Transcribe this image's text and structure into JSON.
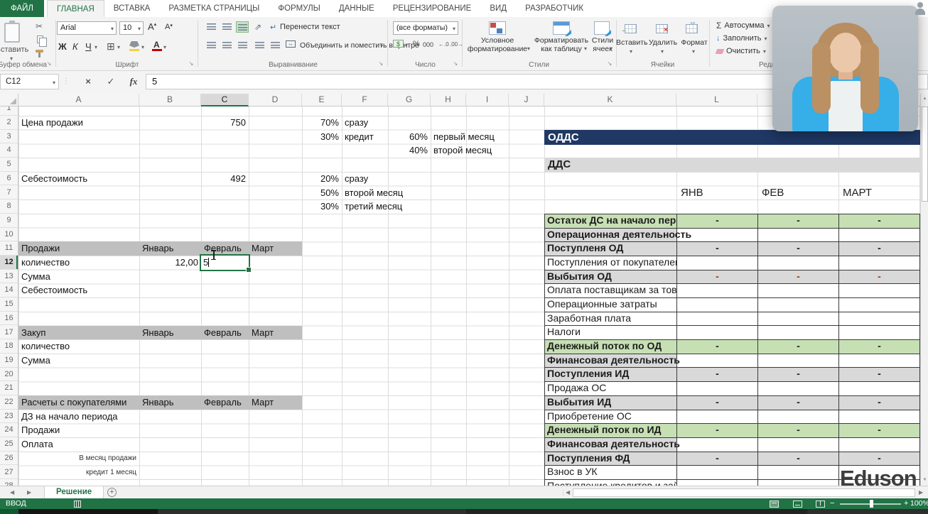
{
  "icons": {
    "scissors": "✂",
    "cancel": "×",
    "confirm": "✓",
    "fx": "fx",
    "sigma": "Σ",
    "caret": "▾",
    "border_grid": "⊞",
    "wrap_arrow": "↵",
    "orientation": "⇗",
    "merge_arrows": "↔",
    "fill_down": "↓",
    "decimal_inc": "←.0",
    "decimal_dec": ".00→",
    "currency": "$",
    "arrow_left": "◀",
    "arrow_right": "▶",
    "arrow_up": "▲",
    "arrow_down": "▼",
    "plus": "+",
    "minus": "−",
    "dots": "⋮",
    "launcher": "↘",
    "font_color_letter": "А"
  },
  "tabs": {
    "file": "ФАЙЛ",
    "active": "ГЛАВНАЯ",
    "items": [
      "ГЛАВНАЯ",
      "ВСТАВКА",
      "РАЗМЕТКА СТРАНИЦЫ",
      "ФОРМУЛЫ",
      "ДАННЫЕ",
      "РЕЦЕНЗИРОВАНИЕ",
      "ВИД",
      "РАЗРАБОТЧИК"
    ]
  },
  "ribbon": {
    "clipboard": {
      "paste": "Вставить",
      "group": "Буфер обмена"
    },
    "font": {
      "name": "Arial",
      "size": "10",
      "bold": "Ж",
      "italic": "К",
      "underline": "Ч",
      "group": "Шрифт"
    },
    "alignment": {
      "wrap": "Перенести текст",
      "merge": "Объединить и поместить в центре",
      "group": "Выравнивание"
    },
    "number": {
      "format": "(все форматы)",
      "percent": "%",
      "thousands": "000",
      "group": "Число"
    },
    "styles": {
      "conditional": "Условное форматирование",
      "as_table": "Форматировать как таблицу",
      "cell_styles": "Стили ячеек",
      "group": "Стили"
    },
    "cells": {
      "insert": "Вставить",
      "del": "Удалить",
      "format": "Формат",
      "group": "Ячейки"
    },
    "editing": {
      "autosum": "Автосумма",
      "fill": "Заполнить",
      "clear": "Очистить",
      "group": "Редактирование"
    }
  },
  "formula_bar": {
    "name_box": "C12",
    "value": "5"
  },
  "grid": {
    "columns": [
      "A",
      "B",
      "C",
      "D",
      "E",
      "F",
      "G",
      "H",
      "I",
      "J",
      "K",
      "L",
      "M"
    ],
    "selected_column": "C",
    "selected_row": 12,
    "rows_visible": 28
  },
  "band_rows": [
    11,
    17,
    22
  ],
  "sheet_cells": [
    {
      "r": 2,
      "c": "A",
      "t": "Цена продажи"
    },
    {
      "r": 2,
      "c": "C",
      "t": "750",
      "a": "r"
    },
    {
      "r": 2,
      "c": "E",
      "t": "70%",
      "a": "r"
    },
    {
      "r": 2,
      "c": "F",
      "t": "сразу"
    },
    {
      "r": 3,
      "c": "E",
      "t": "30%",
      "a": "r"
    },
    {
      "r": 3,
      "c": "F",
      "t": "кредит"
    },
    {
      "r": 3,
      "c": "G",
      "t": "60%",
      "a": "r"
    },
    {
      "r": 3,
      "c": "H",
      "t": "первый месяц"
    },
    {
      "r": 4,
      "c": "G",
      "t": "40%",
      "a": "r"
    },
    {
      "r": 4,
      "c": "H",
      "t": "второй месяц"
    },
    {
      "r": 6,
      "c": "A",
      "t": "Себестоимость"
    },
    {
      "r": 6,
      "c": "C",
      "t": "492",
      "a": "r"
    },
    {
      "r": 6,
      "c": "E",
      "t": "20%",
      "a": "r"
    },
    {
      "r": 6,
      "c": "F",
      "t": "сразу"
    },
    {
      "r": 7,
      "c": "E",
      "t": "50%",
      "a": "r"
    },
    {
      "r": 7,
      "c": "F",
      "t": "второй месяц"
    },
    {
      "r": 8,
      "c": "E",
      "t": "30%",
      "a": "r"
    },
    {
      "r": 8,
      "c": "F",
      "t": "третий месяц"
    },
    {
      "r": 11,
      "c": "A",
      "t": "Продажи"
    },
    {
      "r": 11,
      "c": "B",
      "t": "Январь"
    },
    {
      "r": 11,
      "c": "C",
      "t": "Февраль"
    },
    {
      "r": 11,
      "c": "D",
      "t": "Март"
    },
    {
      "r": 12,
      "c": "A",
      "t": "количество"
    },
    {
      "r": 12,
      "c": "B",
      "t": "12,00",
      "a": "r"
    },
    {
      "r": 13,
      "c": "A",
      "t": "Сумма"
    },
    {
      "r": 14,
      "c": "A",
      "t": "Себестоимость"
    },
    {
      "r": 17,
      "c": "A",
      "t": "Закуп"
    },
    {
      "r": 17,
      "c": "B",
      "t": "Январь"
    },
    {
      "r": 17,
      "c": "C",
      "t": "Февраль"
    },
    {
      "r": 17,
      "c": "D",
      "t": "Март"
    },
    {
      "r": 18,
      "c": "A",
      "t": "количество"
    },
    {
      "r": 19,
      "c": "A",
      "t": "Сумма"
    },
    {
      "r": 22,
      "c": "A",
      "t": "Расчеты с покупателями"
    },
    {
      "r": 22,
      "c": "B",
      "t": "Январь"
    },
    {
      "r": 22,
      "c": "C",
      "t": "Февраль"
    },
    {
      "r": 22,
      "c": "D",
      "t": "Март"
    },
    {
      "r": 23,
      "c": "A",
      "t": "ДЗ на начало периода"
    },
    {
      "r": 24,
      "c": "A",
      "t": "Продажи"
    },
    {
      "r": 25,
      "c": "A",
      "t": "Оплата"
    },
    {
      "r": 26,
      "c": "A",
      "t": "В месяц продажи",
      "a": "r",
      "s": 1
    },
    {
      "r": 27,
      "c": "A",
      "t": "кредит 1 месяц",
      "a": "r",
      "s": 1
    }
  ],
  "oddc": {
    "title": "ОДДС",
    "subtitle": "ДДС",
    "months": [
      "ЯНВ",
      "ФЕВ",
      "МАРТ"
    ],
    "rows": [
      {
        "label": "Остаток ДС на начало периода",
        "type": "green",
        "values": [
          "-",
          "-",
          "-"
        ]
      },
      {
        "label": "Операционная деятельность",
        "type": "section",
        "values": [
          "",
          "",
          ""
        ]
      },
      {
        "label": "Поступленя ОД",
        "type": "gray",
        "values": [
          "-",
          "-",
          "-"
        ]
      },
      {
        "label": "Поступления от покупателей",
        "type": "item",
        "values": [
          "",
          "",
          ""
        ]
      },
      {
        "label": "Выбытия ОД",
        "type": "gray_red",
        "values": [
          "-",
          "-",
          "-"
        ]
      },
      {
        "label": "Оплата поставщикам за товар",
        "type": "item",
        "values": [
          "",
          "",
          ""
        ]
      },
      {
        "label": "Операционные затраты",
        "type": "item",
        "values": [
          "",
          "",
          ""
        ]
      },
      {
        "label": "Заработная плата",
        "type": "item",
        "values": [
          "",
          "",
          ""
        ]
      },
      {
        "label": "Налоги",
        "type": "item",
        "values": [
          "",
          "",
          ""
        ]
      },
      {
        "label": "Денежный поток по ОД",
        "type": "green",
        "values": [
          "-",
          "-",
          "-"
        ]
      },
      {
        "label": "Финансовая деятельность",
        "type": "section",
        "values": [
          "",
          "",
          ""
        ]
      },
      {
        "label": "Поступления ИД",
        "type": "gray",
        "values": [
          "-",
          "-",
          "-"
        ]
      },
      {
        "label": "Продажа ОС",
        "type": "item",
        "values": [
          "",
          "",
          ""
        ]
      },
      {
        "label": "Выбытия ИД",
        "type": "gray",
        "values": [
          "-",
          "-",
          "-"
        ]
      },
      {
        "label": "Приобретение ОС",
        "type": "item",
        "values": [
          "",
          "",
          ""
        ]
      },
      {
        "label": "Денежный поток по ИД",
        "type": "green",
        "values": [
          "-",
          "-",
          "-"
        ]
      },
      {
        "label": "Финансовая деятельность",
        "type": "section",
        "values": [
          "",
          "",
          ""
        ]
      },
      {
        "label": "Поступления ФД",
        "type": "gray",
        "values": [
          "-",
          "-",
          "-"
        ]
      },
      {
        "label": "Взнос в УК",
        "type": "item",
        "values": [
          "",
          "",
          ""
        ]
      },
      {
        "label": "Поступление кредитов и займов",
        "type": "item",
        "values": [
          "",
          "",
          ""
        ]
      }
    ]
  },
  "sheet_tab": {
    "active": "Решение"
  },
  "status_bar": {
    "mode": "ВВОД",
    "zoom_level": "100%"
  },
  "watermark": "Eduson",
  "colors": {
    "accent_green": "#217346",
    "table_header_blue": "#1F3864",
    "band_gray": "#BFBFBF",
    "row_green": "#C6E0B4",
    "row_gray": "#D9D9D9",
    "dash_red": "#9C3A00"
  }
}
